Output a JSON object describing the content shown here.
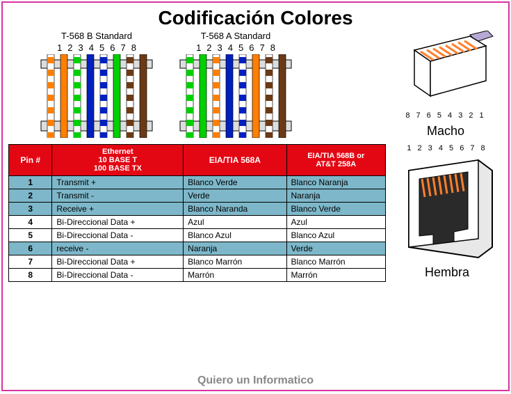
{
  "title": "Codificación Colores",
  "footer": "Quiero un Informatico",
  "standards": {
    "b": {
      "label": "T-568 B Standard",
      "pins": [
        "1",
        "2",
        "3",
        "4",
        "5",
        "6",
        "7",
        "8"
      ],
      "colors": [
        {
          "base": "#ffffff",
          "stripe": "#ff7f00"
        },
        {
          "base": "#ff7f00",
          "stripe": null
        },
        {
          "base": "#ffffff",
          "stripe": "#00d000"
        },
        {
          "base": "#0020c0",
          "stripe": null
        },
        {
          "base": "#ffffff",
          "stripe": "#0020c0"
        },
        {
          "base": "#00d000",
          "stripe": null
        },
        {
          "base": "#ffffff",
          "stripe": "#6b3a15"
        },
        {
          "base": "#6b3a15",
          "stripe": null
        }
      ]
    },
    "a": {
      "label": "T-568 A Standard",
      "pins": [
        "1",
        "2",
        "3",
        "4",
        "5",
        "6",
        "7",
        "8"
      ],
      "colors": [
        {
          "base": "#ffffff",
          "stripe": "#00d000"
        },
        {
          "base": "#00d000",
          "stripe": null
        },
        {
          "base": "#ffffff",
          "stripe": "#ff7f00"
        },
        {
          "base": "#0020c0",
          "stripe": null
        },
        {
          "base": "#ffffff",
          "stripe": "#0020c0"
        },
        {
          "base": "#ff7f00",
          "stripe": null
        },
        {
          "base": "#ffffff",
          "stripe": "#6b3a15"
        },
        {
          "base": "#6b3a15",
          "stripe": null
        }
      ]
    }
  },
  "connector": {
    "male_label": "Macho",
    "male_pins": "8 7 6 5 4 3 2 1",
    "female_label": "Hembra",
    "female_pins": "1 2 3 4 5 6 7 8",
    "pin_color": "#ff7f2a",
    "body_color": "#ffffff",
    "outline": "#000000",
    "cable_color": "#b8a8d8"
  },
  "table": {
    "headers": {
      "pin": "Pin #",
      "eth1": "Ethernet",
      "eth2": "10 BASE T",
      "eth3": "100 BASE TX",
      "a": "EIA/TIA 568A",
      "b1": "EIA/TIA 568B or",
      "b2": "AT&T 258A"
    },
    "header_bg": "#e30613",
    "highlight_bg": "#7db7c9",
    "rows": [
      {
        "pin": "1",
        "eth": "Transmit +",
        "a": "Blanco Verde",
        "b": "Blanco Naranja",
        "hl": true
      },
      {
        "pin": "2",
        "eth": "Transmit -",
        "a": "Verde",
        "b": "Naranja",
        "hl": true
      },
      {
        "pin": "3",
        "eth": "Receive +",
        "a": "Blanco Naranda",
        "b": "Blanco Verde",
        "hl": true
      },
      {
        "pin": "4",
        "eth": "Bi-Direccional Data +",
        "a": "Azul",
        "b": "Azul",
        "hl": false
      },
      {
        "pin": "5",
        "eth": "Bi-Direccional Data -",
        "a": "Blanco Azul",
        "b": "Blanco Azul",
        "hl": false
      },
      {
        "pin": "6",
        "eth": "receive -",
        "a": "Naranja",
        "b": "Verde",
        "hl": true
      },
      {
        "pin": "7",
        "eth": "Bi-Direccional Data +",
        "a": "Blanco Marrón",
        "b": "Blanco Marrón",
        "hl": false
      },
      {
        "pin": "8",
        "eth": "Bi-Direccional Data -",
        "a": "Marrón",
        "b": "Marrón",
        "hl": false
      }
    ]
  }
}
